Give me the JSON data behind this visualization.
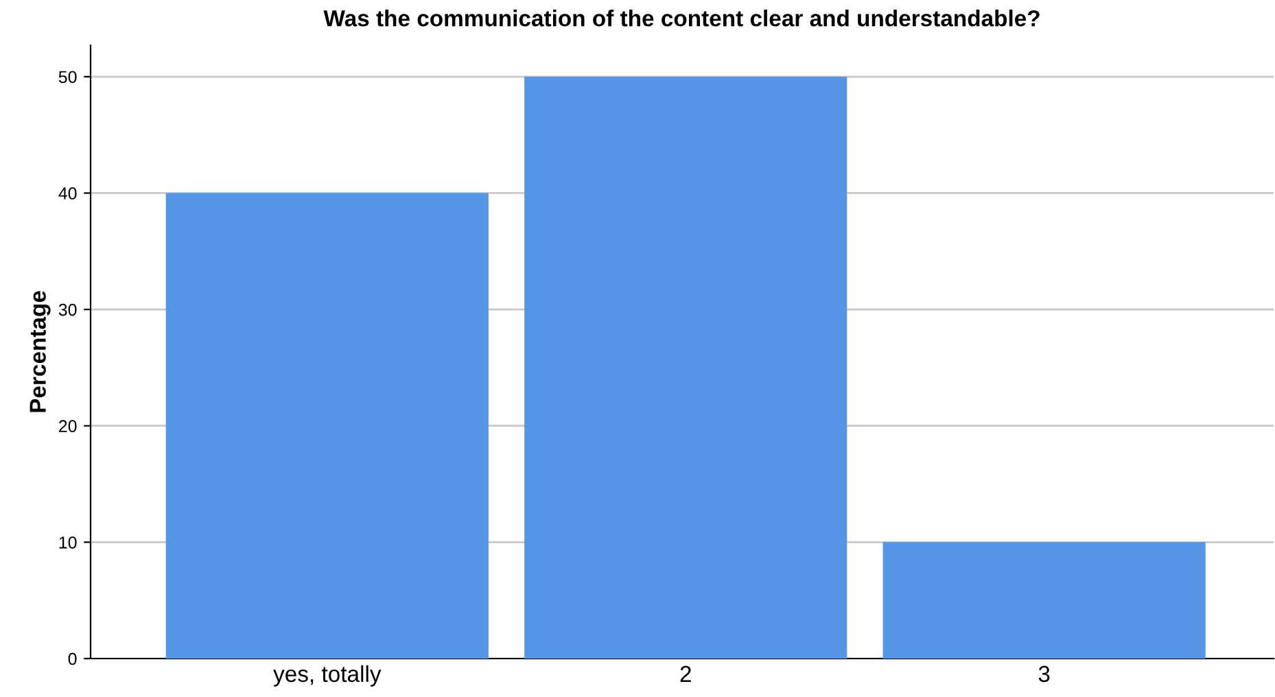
{
  "chart_data": {
    "type": "bar",
    "title": "Was the communication of the content clear and understandable?",
    "ylabel": "Percentage",
    "categories": [
      "yes, totally",
      "2",
      "3"
    ],
    "values": [
      40,
      50,
      10
    ],
    "color": "#5596e6",
    "ylim": [
      0,
      52.7
    ],
    "yticks": [
      0,
      10,
      20,
      30,
      40,
      50
    ],
    "grid": "y"
  }
}
